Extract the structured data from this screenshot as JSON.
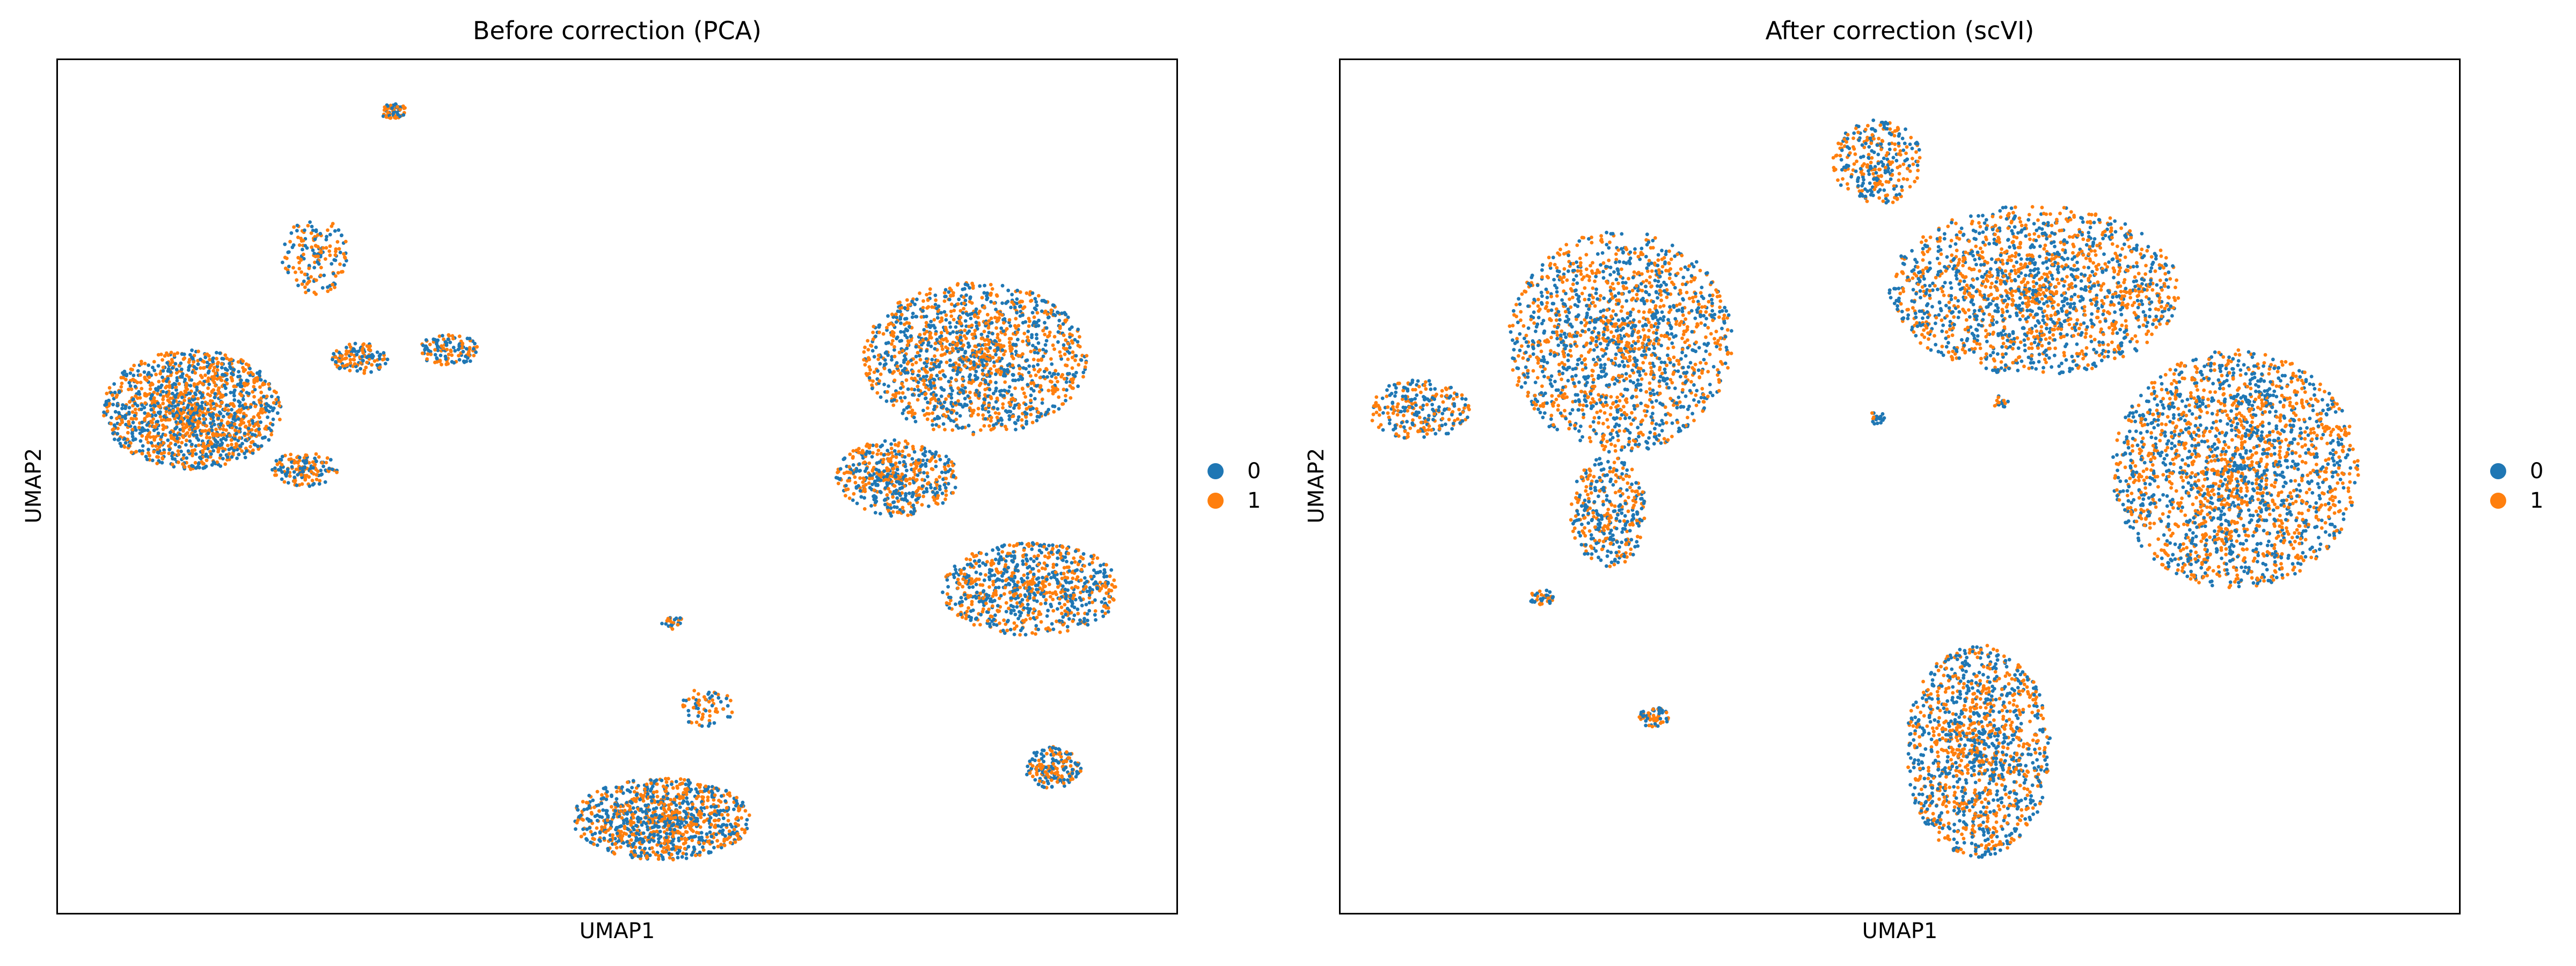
{
  "chart_data": [
    {
      "type": "scatter",
      "title": "Before correction (PCA)",
      "xlabel": "UMAP1",
      "ylabel": "UMAP2",
      "xlim": [
        0,
        100
      ],
      "ylim": [
        0,
        100
      ],
      "grid": false,
      "legend_position": "right",
      "series": [
        {
          "name": "0",
          "color": "#1f77b4"
        },
        {
          "name": "1",
          "color": "#ff7f0e"
        }
      ],
      "clusters": [
        {
          "cx": 12,
          "cy": 59,
          "rx": 8.0,
          "ry": 7.0,
          "n": 1400
        },
        {
          "cx": 22,
          "cy": 52,
          "rx": 3.0,
          "ry": 2.0,
          "n": 150
        },
        {
          "cx": 27,
          "cy": 65,
          "rx": 2.5,
          "ry": 1.8,
          "n": 130
        },
        {
          "cx": 35,
          "cy": 66,
          "rx": 2.6,
          "ry": 2.0,
          "n": 120
        },
        {
          "cx": 23,
          "cy": 77,
          "rx": 3.0,
          "ry": 4.5,
          "n": 160
        },
        {
          "cx": 30,
          "cy": 94,
          "rx": 1.2,
          "ry": 0.9,
          "n": 60
        },
        {
          "cx": 82,
          "cy": 65,
          "rx": 10.0,
          "ry": 9.0,
          "n": 1500
        },
        {
          "cx": 75,
          "cy": 51,
          "rx": 5.5,
          "ry": 4.5,
          "n": 500
        },
        {
          "cx": 87,
          "cy": 38,
          "rx": 8.0,
          "ry": 5.5,
          "n": 800
        },
        {
          "cx": 89,
          "cy": 17,
          "rx": 2.5,
          "ry": 2.5,
          "n": 180
        },
        {
          "cx": 54,
          "cy": 11,
          "rx": 8.0,
          "ry": 4.8,
          "n": 1000
        },
        {
          "cx": 58,
          "cy": 24,
          "rx": 2.5,
          "ry": 2.5,
          "n": 70
        },
        {
          "cx": 55,
          "cy": 34,
          "rx": 1.0,
          "ry": 0.8,
          "n": 30
        }
      ]
    },
    {
      "type": "scatter",
      "title": "After correction (scVI)",
      "xlabel": "UMAP1",
      "ylabel": "UMAP2",
      "xlim": [
        0,
        100
      ],
      "ylim": [
        0,
        100
      ],
      "grid": false,
      "legend_position": "right",
      "series": [
        {
          "name": "0",
          "color": "#1f77b4"
        },
        {
          "name": "1",
          "color": "#ff7f0e"
        }
      ],
      "clusters": [
        {
          "cx": 25,
          "cy": 67,
          "rx": 10.0,
          "ry": 13.0,
          "n": 1600
        },
        {
          "cx": 24,
          "cy": 47,
          "rx": 3.5,
          "ry": 6.5,
          "n": 350
        },
        {
          "cx": 7,
          "cy": 59,
          "rx": 4.5,
          "ry": 3.5,
          "n": 250
        },
        {
          "cx": 18,
          "cy": 37,
          "rx": 1.2,
          "ry": 0.9,
          "n": 40
        },
        {
          "cx": 28,
          "cy": 23,
          "rx": 1.4,
          "ry": 1.2,
          "n": 60
        },
        {
          "cx": 48,
          "cy": 88,
          "rx": 4.0,
          "ry": 5.0,
          "n": 300
        },
        {
          "cx": 62,
          "cy": 73,
          "rx": 13.0,
          "ry": 10.0,
          "n": 1700
        },
        {
          "cx": 80,
          "cy": 52,
          "rx": 11.0,
          "ry": 14.0,
          "n": 2100
        },
        {
          "cx": 57,
          "cy": 19,
          "rx": 6.5,
          "ry": 12.5,
          "n": 1300
        },
        {
          "cx": 48,
          "cy": 58,
          "rx": 0.8,
          "ry": 0.8,
          "n": 20
        },
        {
          "cx": 59,
          "cy": 60,
          "rx": 0.7,
          "ry": 0.9,
          "n": 15
        }
      ]
    }
  ]
}
